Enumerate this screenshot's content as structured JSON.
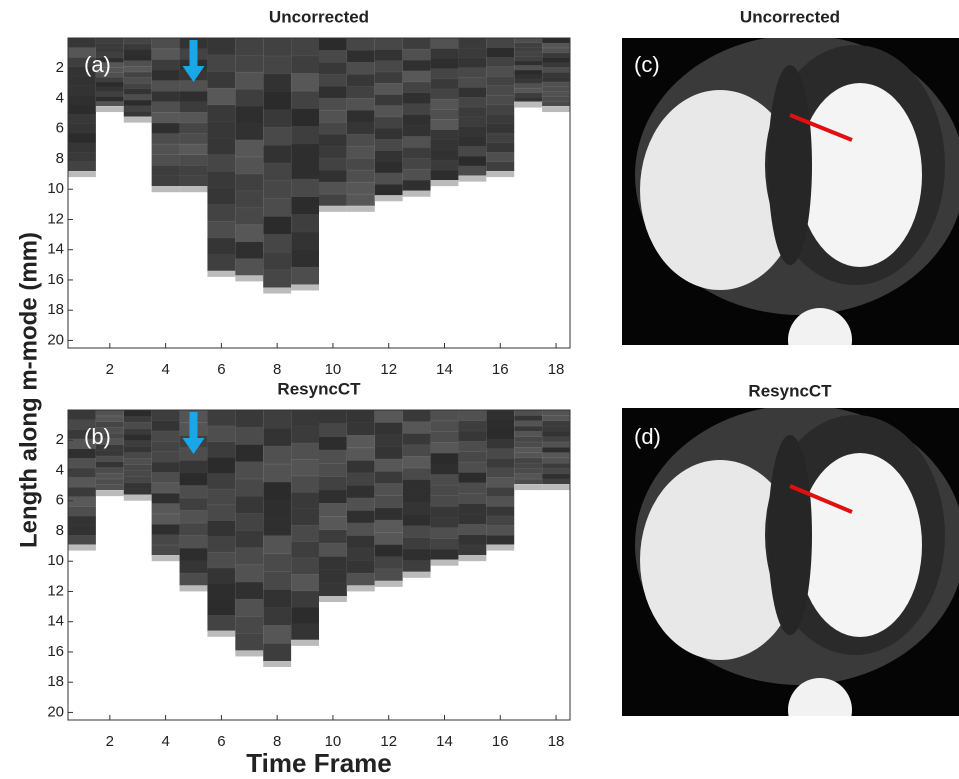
{
  "chart_data": [
    {
      "type": "bar",
      "title": "Uncorrected",
      "panel_label": "(a)",
      "ylabel": "Length along m-mode (mm)",
      "categories": [
        1,
        2,
        3,
        4,
        5,
        6,
        7,
        8,
        9,
        10,
        11,
        12,
        13,
        14,
        15,
        16,
        17,
        18
      ],
      "values": [
        8.8,
        4.5,
        5.2,
        9.8,
        9.8,
        15.4,
        15.7,
        16.5,
        16.3,
        11.1,
        11.1,
        10.4,
        10.1,
        9.4,
        9.1,
        8.8,
        4.2,
        4.5
      ],
      "color": "#2b2b2b",
      "xlim": [
        0.5,
        18.5
      ],
      "ylim": [
        20.5,
        0
      ],
      "xticks": [
        2,
        4,
        6,
        8,
        10,
        12,
        14,
        16,
        18
      ],
      "yticks": [
        2,
        4,
        6,
        8,
        10,
        12,
        14,
        16,
        18,
        20
      ]
    },
    {
      "type": "bar",
      "title": "ResyncCT",
      "panel_label": "(b)",
      "xlabel": "Time Frame",
      "categories": [
        1,
        2,
        3,
        4,
        5,
        6,
        7,
        8,
        9,
        10,
        11,
        12,
        13,
        14,
        15,
        16,
        17,
        18
      ],
      "values": [
        8.9,
        5.3,
        5.6,
        9.6,
        11.6,
        14.6,
        15.9,
        16.6,
        15.2,
        12.3,
        11.6,
        11.3,
        10.7,
        9.9,
        9.6,
        8.9,
        4.9,
        4.9
      ],
      "color": "#2b2b2b",
      "xlim": [
        0.5,
        18.5
      ],
      "ylim": [
        20.5,
        0
      ],
      "xticks": [
        2,
        4,
        6,
        8,
        10,
        12,
        14,
        16,
        18
      ],
      "yticks": [
        2,
        4,
        6,
        8,
        10,
        12,
        14,
        16,
        18,
        20
      ]
    }
  ],
  "images": [
    {
      "title": "Uncorrected",
      "label": "(c)"
    },
    {
      "title": "ResyncCT",
      "label": "(d)"
    }
  ]
}
